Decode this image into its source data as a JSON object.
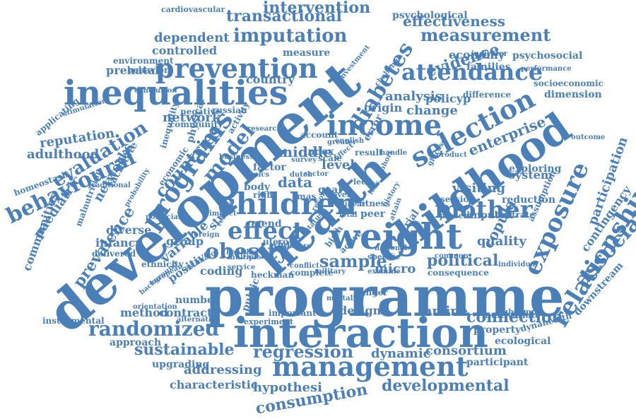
{
  "words": [
    "programme",
    "development",
    "health",
    "childhood",
    "interaction",
    "inequalities",
    "weight",
    "income",
    "children",
    "prevention",
    "management",
    "selection",
    "exposure",
    "relationship",
    "randomized",
    "programs",
    "mother",
    "effect",
    "obesity",
    "diabetes",
    "attendance",
    "association",
    "imputation",
    "transactional",
    "intervention",
    "measurement",
    "evidence",
    "behavioural",
    "evaluation",
    "sample",
    "model",
    "countries",
    "consumption",
    "developmental",
    "regression",
    "sustainable",
    "political",
    "connection",
    "characteristic",
    "addressing",
    "hypothesi",
    "consortium",
    "dynamic",
    "famine",
    "design",
    "quality",
    "visiting",
    "network",
    "middle",
    "analysis",
    "change",
    "origin",
    "enterprise",
    "participation",
    "copula",
    "prevalence",
    "variable",
    "positive",
    "coding",
    "micro",
    "group",
    "infancy",
    "diverse",
    "study",
    "data",
    "level",
    "factor",
    "system",
    "property",
    "contingency",
    "downstream",
    "dynahealth",
    "ecological",
    "participant",
    "upgrading",
    "approach",
    "method",
    "contract",
    "number",
    "instrumental",
    "reputation",
    "adulthood",
    "homeostasis",
    "paediatric",
    "communities",
    "networks",
    "country",
    "dependent",
    "controlled",
    "prenatal",
    "economy",
    "families",
    "effectiveness",
    "psychological",
    "psychosocial",
    "socioeconomic",
    "dimension",
    "difference",
    "cardiovascular",
    "environment",
    "behavior",
    "applicating",
    "stimulation",
    "measure",
    "conclusion",
    "indicator",
    "performance",
    "policyp",
    "assumption",
    "multivariate",
    "subsample",
    "exploring",
    "reduction",
    "session",
    "illustrate",
    "imputed",
    "consequence",
    "common",
    "conflict",
    "facilitate",
    "economic",
    "inequality",
    "physical",
    "activity",
    "community",
    "negative",
    "russian",
    "research",
    "account",
    "index",
    "scale",
    "mend",
    "utero",
    "heckman",
    "winter",
    "body",
    "right",
    "mas",
    "goal",
    "peer",
    "birth",
    "active",
    "specific",
    "trial",
    "national",
    "hunger",
    "mortality",
    "complete",
    "military",
    "examine",
    "important",
    "public",
    "experiment",
    "alternative",
    "orientation",
    "background",
    "ethnicity",
    "delivered",
    "traditional",
    "malnutrition",
    "probability",
    "european",
    "estimator",
    "politician",
    "healthy",
    "service",
    "verified",
    "business",
    "survey",
    "dutch",
    "sector",
    "novel",
    "linear",
    "fetal",
    "fitness",
    "error",
    "result",
    "english",
    "cohort",
    "glucose",
    "product",
    "impact",
    "loss",
    "present",
    "individual",
    "foreign",
    "multiple",
    "investment",
    "challenge",
    "greater",
    "handle",
    "warfare",
    "leed",
    "bmics",
    "status",
    "effect",
    "history",
    "attain",
    "record",
    "outcome"
  ]
}
